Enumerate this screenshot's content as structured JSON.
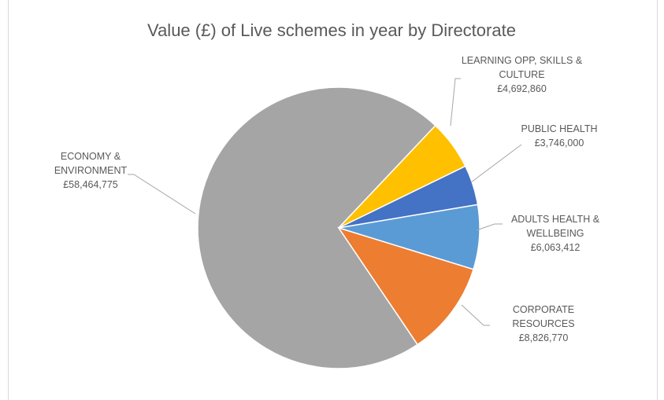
{
  "chart_data": {
    "type": "pie",
    "title": "Value (£) of Live schemes in year by Directorate",
    "categories": [
      "ECONOMY & ENVIRONMENT",
      "LEARNING OPP, SKILLS & CULTURE",
      "PUBLIC HEALTH",
      "ADULTS HEALTH & WELLBEING",
      "CORPORATE RESOURCES"
    ],
    "values": [
      58464775,
      4692860,
      3746000,
      6063412,
      8826770
    ],
    "value_labels": [
      "£58,464,775",
      "£4,692,860",
      "£3,746,000",
      "£6,063,412",
      "£8,826,770"
    ],
    "colors": [
      "#a5a5a5",
      "#ffc000",
      "#4472c4",
      "#5b9bd5",
      "#ed7d31"
    ]
  }
}
